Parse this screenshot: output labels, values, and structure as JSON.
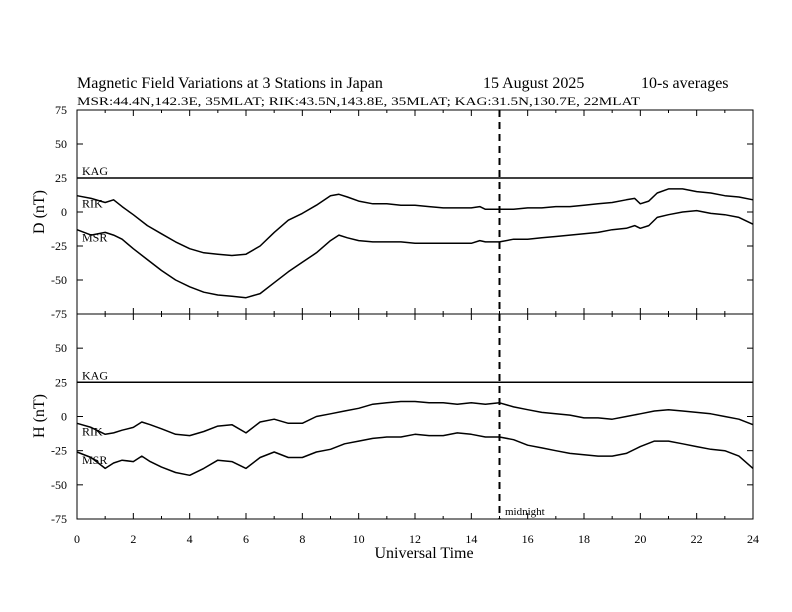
{
  "chart_data": {
    "type": "line",
    "title": "Magnetic Field Variations at 3 Stations in Japan",
    "date": "15  August  2025",
    "averaging": "10-s averages",
    "subtitle": "MSR:44.4N,142.3E, 35MLAT;  RIK:43.5N,143.8E, 35MLAT;  KAG:31.5N,130.7E, 22MLAT",
    "xlabel": "Universal Time",
    "xlim": [
      0,
      24
    ],
    "x_ticks": [
      "0",
      "2",
      "4",
      "6",
      "8",
      "10",
      "12",
      "14",
      "16",
      "18",
      "20",
      "22",
      "24"
    ],
    "y_ticks": [
      "75",
      "50",
      "25",
      "0",
      "-25",
      "-50",
      "-75"
    ],
    "midnight": {
      "x": 15,
      "label": "midnight"
    },
    "panels": [
      {
        "id": "D",
        "ylabel": "D (nT)",
        "ylim": [
          -75,
          75
        ],
        "series": [
          {
            "name": "KAG",
            "x": [
              0,
              24
            ],
            "values": [
              25,
              25
            ]
          },
          {
            "name": "RIK",
            "x": [
              0,
              0.5,
              1,
              1.3,
              1.6,
              2,
              2.5,
              3,
              3.5,
              4,
              4.5,
              5,
              5.5,
              6,
              6.5,
              7,
              7.5,
              8,
              8.5,
              9,
              9.3,
              9.6,
              10,
              10.5,
              11,
              11.5,
              12,
              12.5,
              13,
              13.5,
              14,
              14.3,
              14.5,
              15,
              15.5,
              16,
              16.5,
              17,
              17.5,
              18,
              18.5,
              19,
              19.5,
              19.8,
              20,
              20.3,
              20.6,
              21,
              21.5,
              22,
              22.5,
              23,
              23.5,
              24
            ],
            "values": [
              12,
              10,
              7,
              9,
              4,
              -2,
              -10,
              -16,
              -22,
              -27,
              -30,
              -31,
              -32,
              -31,
              -25,
              -15,
              -6,
              -1,
              5,
              12,
              13,
              11,
              8,
              6,
              6,
              5,
              5,
              4,
              3,
              3,
              3,
              4,
              2,
              2,
              2,
              3,
              3,
              4,
              4,
              5,
              6,
              7,
              9,
              10,
              6,
              8,
              14,
              17,
              17,
              15,
              14,
              12,
              11,
              9
            ]
          },
          {
            "name": "MSR",
            "x": [
              0,
              0.5,
              1,
              1.3,
              1.6,
              2,
              2.5,
              3,
              3.5,
              4,
              4.5,
              5,
              5.5,
              6,
              6.5,
              7,
              7.5,
              8,
              8.5,
              9,
              9.3,
              9.6,
              10,
              10.5,
              11,
              11.5,
              12,
              12.5,
              13,
              13.5,
              14,
              14.3,
              14.5,
              15,
              15.5,
              16,
              16.5,
              17,
              17.5,
              18,
              18.5,
              19,
              19.5,
              19.8,
              20,
              20.3,
              20.6,
              21,
              21.5,
              22,
              22.5,
              23,
              23.5,
              24
            ],
            "values": [
              -13,
              -17,
              -15,
              -17,
              -20,
              -27,
              -35,
              -43,
              -50,
              -55,
              -59,
              -61,
              -62,
              -63,
              -60,
              -52,
              -44,
              -37,
              -30,
              -21,
              -17,
              -19,
              -21,
              -22,
              -22,
              -22,
              -23,
              -23,
              -23,
              -23,
              -23,
              -21,
              -22,
              -22,
              -20,
              -20,
              -19,
              -18,
              -17,
              -16,
              -15,
              -13,
              -12,
              -10,
              -12,
              -10,
              -4,
              -2,
              0,
              1,
              -1,
              -2,
              -4,
              -9
            ]
          }
        ]
      },
      {
        "id": "H",
        "ylabel": "H (nT)",
        "ylim": [
          -75,
          75
        ],
        "series": [
          {
            "name": "KAG",
            "x": [
              0,
              24
            ],
            "values": [
              25,
              25
            ]
          },
          {
            "name": "RIK",
            "x": [
              0,
              0.5,
              1,
              1.3,
              1.6,
              2,
              2.3,
              2.6,
              3,
              3.5,
              4,
              4.5,
              5,
              5.5,
              6,
              6.5,
              7,
              7.5,
              8,
              8.5,
              9,
              9.5,
              10,
              10.5,
              11,
              11.5,
              12,
              12.5,
              13,
              13.5,
              14,
              14.5,
              15,
              15.5,
              16,
              16.5,
              17,
              17.5,
              18,
              18.5,
              19,
              19.5,
              20,
              20.5,
              21,
              21.5,
              22,
              22.5,
              23,
              23.5,
              24
            ],
            "values": [
              -5,
              -8,
              -13,
              -12,
              -10,
              -8,
              -4,
              -6,
              -9,
              -13,
              -14,
              -11,
              -7,
              -6,
              -12,
              -4,
              -2,
              -5,
              -5,
              0,
              2,
              4,
              6,
              9,
              10,
              11,
              11,
              10,
              10,
              9,
              10,
              9,
              10,
              7,
              5,
              3,
              2,
              1,
              -1,
              -1,
              -2,
              0,
              2,
              4,
              5,
              4,
              3,
              2,
              0,
              -2,
              -6
            ]
          },
          {
            "name": "MSR",
            "x": [
              0,
              0.5,
              1,
              1.3,
              1.6,
              2,
              2.3,
              2.6,
              3,
              3.5,
              4,
              4.5,
              5,
              5.5,
              6,
              6.5,
              7,
              7.5,
              8,
              8.5,
              9,
              9.5,
              10,
              10.5,
              11,
              11.5,
              12,
              12.5,
              13,
              13.5,
              14,
              14.5,
              15,
              15.5,
              16,
              16.5,
              17,
              17.5,
              18,
              18.5,
              19,
              19.5,
              20,
              20.5,
              21,
              21.5,
              22,
              22.5,
              23,
              23.5,
              24
            ],
            "values": [
              -26,
              -30,
              -38,
              -34,
              -32,
              -33,
              -29,
              -33,
              -37,
              -41,
              -43,
              -38,
              -32,
              -33,
              -38,
              -30,
              -26,
              -30,
              -30,
              -26,
              -24,
              -20,
              -18,
              -16,
              -15,
              -15,
              -13,
              -14,
              -14,
              -12,
              -13,
              -15,
              -15,
              -17,
              -21,
              -23,
              -25,
              -27,
              -28,
              -29,
              -29,
              -27,
              -22,
              -18,
              -18,
              -20,
              -22,
              -24,
              -25,
              -29,
              -38
            ]
          }
        ]
      }
    ]
  }
}
